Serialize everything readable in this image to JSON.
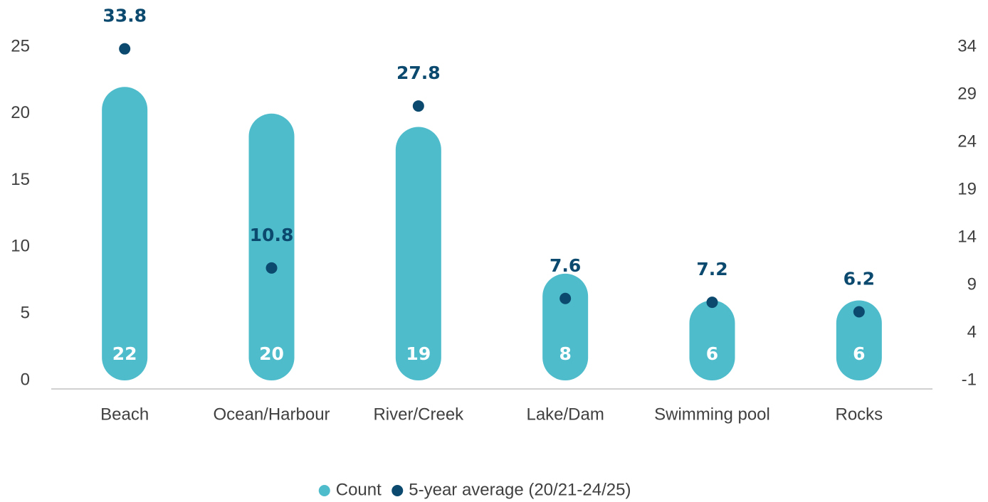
{
  "chart_data": {
    "type": "bar",
    "categories": [
      "Beach",
      "Ocean/Harbour",
      "River/Creek",
      "Lake/Dam",
      "Swimming pool",
      "Rocks"
    ],
    "series": [
      {
        "name": "Count",
        "type": "bar",
        "color": "#4fbccc",
        "values": [
          22,
          20,
          19,
          8,
          6,
          6
        ]
      },
      {
        "name": "5-year average (20/21-24/25)",
        "type": "scatter",
        "axis": "y2",
        "color": "#0b4a6e",
        "values": [
          33.8,
          10.8,
          27.8,
          7.6,
          7.2,
          6.2
        ]
      }
    ],
    "ylim": [
      0,
      25
    ],
    "yticks": [
      0,
      5,
      10,
      15,
      20,
      25
    ],
    "y2lim": [
      -1,
      34
    ],
    "y2ticks": [
      -1,
      4,
      9,
      14,
      19,
      24,
      29,
      34
    ],
    "legend": "bottom"
  }
}
